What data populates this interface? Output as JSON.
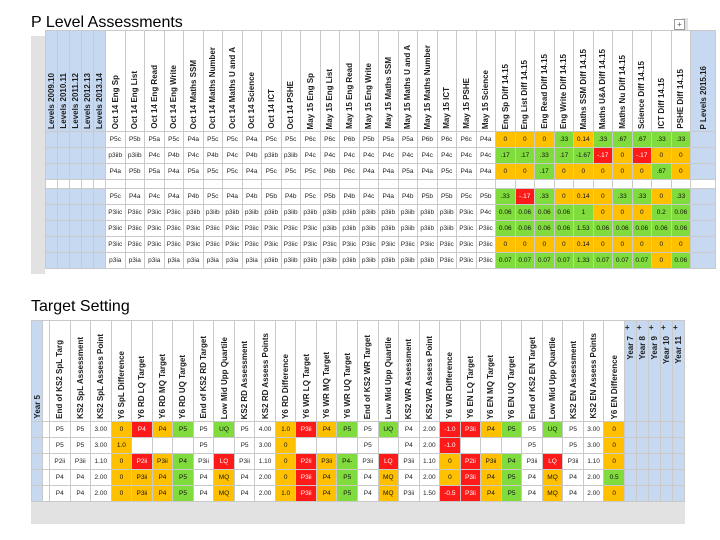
{
  "panels": {
    "p_level": {
      "title": "P Level Assessments"
    },
    "target": {
      "title": "Target Setting"
    }
  },
  "p_level_headers": {
    "left_years": [
      "Levels 2009.10",
      "Levels 2010.11",
      "Levels 2011.12",
      "Levels 2012.13",
      "Levels 2013.14"
    ],
    "columns": [
      "Oct 14 Eng Sp",
      "Oct 14 Eng List",
      "Oct 14 Eng Read",
      "Oct 14 Eng Write",
      "Oct 14 Maths SSM",
      "Oct 14 Maths Number",
      "Oct 14 Maths U and A",
      "Oct 14 Science",
      "Oct 14 ICT",
      "Oct 14 PSHE",
      "May 15 Eng Sp",
      "May 15 Eng List",
      "May 15 Eng Read",
      "May 15 Eng Write",
      "May 15 Maths SSM",
      "May 15 Maths U and A",
      "May 15 Maths Number",
      "May 15 ICT",
      "May 15 PSHE",
      "May 15 Science",
      "Eng Sp Diff 14.15",
      "Eng List Diff 14.15",
      "Eng Read Diff 14.15",
      "Eng Write Diff 14.15",
      "Maths SSM Diff 14.15",
      "Maths U&A Diff 14.15",
      "Maths Nu Diff 14.15",
      "Science Diff 14.15",
      "ICT Diff 14.15",
      "PSHE Diff 14.15"
    ],
    "right_year": "P Levels 2015.16"
  },
  "p_level_rows": [
    [
      [
        "P5c",
        "w"
      ],
      [
        "P5b",
        "w"
      ],
      [
        "P5a",
        "w"
      ],
      [
        "P5c",
        "w"
      ],
      [
        "P4a",
        "w"
      ],
      [
        "P5c",
        "w"
      ],
      [
        "P5c",
        "w"
      ],
      [
        "P4a",
        "w"
      ],
      [
        "P5c",
        "w"
      ],
      [
        "P5c",
        "w"
      ],
      [
        "P6c",
        "w"
      ],
      [
        "P6c",
        "w"
      ],
      [
        "P6b",
        "w"
      ],
      [
        "P5b",
        "w"
      ],
      [
        "P5a",
        "w"
      ],
      [
        "P5a",
        "w"
      ],
      [
        "P6b",
        "w"
      ],
      [
        "P6c",
        "w"
      ],
      [
        "P6c",
        "w"
      ],
      [
        "P4a",
        "w"
      ],
      [
        "0",
        "y"
      ],
      [
        "0",
        "y"
      ],
      [
        "0",
        "y"
      ],
      [
        ".33",
        "g"
      ],
      [
        "0.14",
        "y"
      ],
      [
        ".33",
        "g"
      ],
      [
        ".67",
        "g"
      ],
      [
        ".67",
        "g"
      ],
      [
        ".33",
        "g"
      ],
      [
        ".33",
        "g"
      ]
    ],
    [
      [
        "p3iib",
        "w"
      ],
      [
        "p3iib",
        "w"
      ],
      [
        "P4c",
        "w"
      ],
      [
        "P4b",
        "w"
      ],
      [
        "P4c",
        "w"
      ],
      [
        "P4b",
        "w"
      ],
      [
        "P4c",
        "w"
      ],
      [
        "P4b",
        "w"
      ],
      [
        "p3iib",
        "w"
      ],
      [
        "p3iib",
        "w"
      ],
      [
        "P4c",
        "w"
      ],
      [
        "P4c",
        "w"
      ],
      [
        "P4c",
        "w"
      ],
      [
        "P4c",
        "w"
      ],
      [
        "P4c",
        "w"
      ],
      [
        "P4c",
        "w"
      ],
      [
        "P4c",
        "w"
      ],
      [
        "P4c",
        "w"
      ],
      [
        "P4c",
        "w"
      ],
      [
        "P4c",
        "w"
      ],
      [
        ".17",
        "g"
      ],
      [
        ".17",
        "g"
      ],
      [
        ".33",
        "g"
      ],
      [
        ".17",
        "g"
      ],
      [
        "-1.67",
        "g"
      ],
      [
        "-.17",
        "r"
      ],
      [
        "0",
        "y"
      ],
      [
        "-.17",
        "r"
      ],
      [
        "0",
        "y"
      ],
      [
        "0",
        "y"
      ]
    ],
    [
      [
        "P4a",
        "w"
      ],
      [
        "P5b",
        "w"
      ],
      [
        "P5a",
        "w"
      ],
      [
        "P4a",
        "w"
      ],
      [
        "P5a",
        "w"
      ],
      [
        "P5c",
        "w"
      ],
      [
        "P5c",
        "w"
      ],
      [
        "P4a",
        "w"
      ],
      [
        "P5c",
        "w"
      ],
      [
        "P5c",
        "w"
      ],
      [
        "P5c",
        "w"
      ],
      [
        "P6b",
        "w"
      ],
      [
        "P6c",
        "w"
      ],
      [
        "P4a",
        "w"
      ],
      [
        "P4a",
        "w"
      ],
      [
        "P5a",
        "w"
      ],
      [
        "P4a",
        "w"
      ],
      [
        "P5c",
        "w"
      ],
      [
        "P4a",
        "w"
      ],
      [
        "P4a",
        "w"
      ],
      [
        "0",
        "y"
      ],
      [
        "0",
        "y"
      ],
      [
        ".17",
        "g"
      ],
      [
        "0",
        "y"
      ],
      [
        "0",
        "y"
      ],
      [
        "0",
        "y"
      ],
      [
        "0",
        "y"
      ],
      [
        "0",
        "y"
      ],
      [
        ".67",
        "g"
      ],
      [
        "0",
        "y"
      ]
    ],
    null,
    [
      [
        "P5c",
        "w"
      ],
      [
        "P4a",
        "w"
      ],
      [
        "P4c",
        "w"
      ],
      [
        "P4a",
        "w"
      ],
      [
        "P4b",
        "w"
      ],
      [
        "P5c",
        "w"
      ],
      [
        "P4a",
        "w"
      ],
      [
        "P4b",
        "w"
      ],
      [
        "P5b",
        "w"
      ],
      [
        "P4b",
        "w"
      ],
      [
        "P5c",
        "w"
      ],
      [
        "P5b",
        "w"
      ],
      [
        "P4b",
        "w"
      ],
      [
        "P4c",
        "w"
      ],
      [
        "P4a",
        "w"
      ],
      [
        "P4b",
        "w"
      ],
      [
        "P5b",
        "w"
      ],
      [
        "P5b",
        "w"
      ],
      [
        "P5c",
        "w"
      ],
      [
        "P5b",
        "w"
      ],
      [
        ".33",
        "g"
      ],
      [
        "-.17",
        "r"
      ],
      [
        ".33",
        "g"
      ],
      [
        "0",
        "y"
      ],
      [
        "0.14",
        "y"
      ],
      [
        "0",
        "y"
      ],
      [
        ".33",
        "g"
      ],
      [
        ".33",
        "g"
      ],
      [
        "0",
        "y"
      ],
      [
        ".33",
        "g"
      ]
    ],
    [
      [
        "P3iic",
        "w"
      ],
      [
        "P3iic",
        "w"
      ],
      [
        "P3iic",
        "w"
      ],
      [
        "P3iic",
        "w"
      ],
      [
        "p3iib",
        "w"
      ],
      [
        "p3iib",
        "w"
      ],
      [
        "p3iib",
        "w"
      ],
      [
        "p3iib",
        "w"
      ],
      [
        "p3iib",
        "w"
      ],
      [
        "p3iib",
        "w"
      ],
      [
        "p3iib",
        "w"
      ],
      [
        "p3iib",
        "w"
      ],
      [
        "p3iib",
        "w"
      ],
      [
        "p3iib",
        "w"
      ],
      [
        "p3iib",
        "w"
      ],
      [
        "p3iib",
        "w"
      ],
      [
        "p3iib",
        "w"
      ],
      [
        "p3iib",
        "w"
      ],
      [
        "P3iic",
        "w"
      ],
      [
        "P4c",
        "w"
      ],
      [
        "0.06",
        "g"
      ],
      [
        "0.06",
        "g"
      ],
      [
        "0.06",
        "g"
      ],
      [
        "0.06",
        "g"
      ],
      [
        "1",
        "g"
      ],
      [
        "0",
        "y"
      ],
      [
        "0",
        "y"
      ],
      [
        "0",
        "y"
      ],
      [
        "0.2",
        "g"
      ],
      [
        "0.06",
        "g"
      ]
    ],
    [
      [
        "P3iic",
        "w"
      ],
      [
        "P3iic",
        "w"
      ],
      [
        "P3iic",
        "w"
      ],
      [
        "P3iic",
        "w"
      ],
      [
        "P3iic",
        "w"
      ],
      [
        "P3iic",
        "w"
      ],
      [
        "P3iic",
        "w"
      ],
      [
        "P3iic",
        "w"
      ],
      [
        "P3iic",
        "w"
      ],
      [
        "P3iic",
        "w"
      ],
      [
        "P3iic",
        "w"
      ],
      [
        "p3iib",
        "w"
      ],
      [
        "p3iib",
        "w"
      ],
      [
        "p3iib",
        "w"
      ],
      [
        "p3iib",
        "w"
      ],
      [
        "p3iib",
        "w"
      ],
      [
        "p3iib",
        "w"
      ],
      [
        "p3iib",
        "w"
      ],
      [
        "P3iic",
        "w"
      ],
      [
        "P3iic",
        "w"
      ],
      [
        "0.06",
        "g"
      ],
      [
        "0.06",
        "g"
      ],
      [
        "0.06",
        "g"
      ],
      [
        "0.06",
        "g"
      ],
      [
        "1.53",
        "g"
      ],
      [
        "0.06",
        "g"
      ],
      [
        "0.06",
        "g"
      ],
      [
        "0.06",
        "g"
      ],
      [
        "0.06",
        "g"
      ],
      [
        "0.06",
        "g"
      ]
    ],
    [
      [
        "P3iic",
        "w"
      ],
      [
        "P3iic",
        "w"
      ],
      [
        "P3iic",
        "w"
      ],
      [
        "P3iic",
        "w"
      ],
      [
        "P3iic",
        "w"
      ],
      [
        "P3iic",
        "w"
      ],
      [
        "P3iic",
        "w"
      ],
      [
        "P3iic",
        "w"
      ],
      [
        "P3iic",
        "w"
      ],
      [
        "P3iic",
        "w"
      ],
      [
        "P3iic",
        "w"
      ],
      [
        "P3iic",
        "w"
      ],
      [
        "P3iic",
        "w"
      ],
      [
        "P3iic",
        "w"
      ],
      [
        "P3iic",
        "w"
      ],
      [
        "P3iic",
        "w"
      ],
      [
        "P3iic",
        "w"
      ],
      [
        "P3iic",
        "w"
      ],
      [
        "P3iic",
        "w"
      ],
      [
        "P3iic",
        "w"
      ],
      [
        "0",
        "y"
      ],
      [
        "0",
        "y"
      ],
      [
        "0",
        "y"
      ],
      [
        "0",
        "y"
      ],
      [
        "0.14",
        "y"
      ],
      [
        "0",
        "y"
      ],
      [
        "0",
        "y"
      ],
      [
        "0",
        "y"
      ],
      [
        "0",
        "y"
      ],
      [
        "0",
        "y"
      ]
    ],
    [
      [
        "p3ia",
        "w"
      ],
      [
        "p3ia",
        "w"
      ],
      [
        "p3ia",
        "w"
      ],
      [
        "p3ia",
        "w"
      ],
      [
        "p3ia",
        "w"
      ],
      [
        "p3ia",
        "w"
      ],
      [
        "p3ia",
        "w"
      ],
      [
        "p3ia",
        "w"
      ],
      [
        "p3iib",
        "w"
      ],
      [
        "p3iib",
        "w"
      ],
      [
        "p3iib",
        "w"
      ],
      [
        "p3iib",
        "w"
      ],
      [
        "p3iib",
        "w"
      ],
      [
        "p3iib",
        "w"
      ],
      [
        "p3iib",
        "w"
      ],
      [
        "p3iib",
        "w"
      ],
      [
        "p3iib",
        "w"
      ],
      [
        "P3iic",
        "w"
      ],
      [
        "P3iic",
        "w"
      ],
      [
        "P3iic",
        "w"
      ],
      [
        "0.07",
        "g"
      ],
      [
        "0.07",
        "g"
      ],
      [
        "0.07",
        "g"
      ],
      [
        "0.07",
        "g"
      ],
      [
        "1.33",
        "g"
      ],
      [
        "0.07",
        "g"
      ],
      [
        "0.07",
        "g"
      ],
      [
        "0.07",
        "g"
      ],
      [
        "0",
        "y"
      ],
      [
        "0.06",
        "g"
      ]
    ]
  ],
  "target_headers": {
    "left_year": "Year 5",
    "columns": [
      "End of KS2 SpL Targ",
      "KS2 SpL Assessment",
      "KS2 SpL Assess Point",
      "Y6 SpL Difference",
      "Y6 RD LQ Target",
      "Y6 RD MQ Target",
      "Y6 RD UQ Target",
      "End of KS2 RD Target",
      "Low Mid Upp Quartile",
      "KS2 RD Assessment",
      "KS2 RD Assess Points",
      "Y6 RD Difference",
      "Y6 WR LQ Target",
      "Y6 WR MQ Target",
      "Y6 WR UQ Target",
      "End of KS2 WR Target",
      "Low Mid Upp Quartile",
      "KS2 WR Assessment",
      "KS2 WR Assess Point",
      "Y6 WR Difference",
      "Y6 EN LQ Target",
      "Y6 EN MQ Target",
      "Y6 EN UQ Target",
      "End of KS2 EN Target",
      "Low Mid Upp Quartile",
      "KS2 EN Assessment",
      "KS2 EN Assess Points",
      "Y6 EN Difference"
    ],
    "right_years": [
      "Year 7",
      "Year 8",
      "Year 9",
      "Year 10",
      "Year 11"
    ]
  },
  "target_rows": [
    [
      [
        "P5",
        "w"
      ],
      [
        "P5",
        "w"
      ],
      [
        "3.00",
        "w"
      ],
      [
        "0",
        "y"
      ],
      [
        "P4",
        "r"
      ],
      [
        "P4",
        "y"
      ],
      [
        "P5",
        "g"
      ],
      [
        "P5",
        "w"
      ],
      [
        "UQ",
        "g"
      ],
      [
        "P5",
        "w"
      ],
      [
        "4.00",
        "w"
      ],
      [
        "1.0",
        "y"
      ],
      [
        "P3ii",
        "r"
      ],
      [
        "P4",
        "y"
      ],
      [
        "P5",
        "g"
      ],
      [
        "P5",
        "w"
      ],
      [
        "UQ",
        "g"
      ],
      [
        "P4",
        "w"
      ],
      [
        "2.00",
        "w"
      ],
      [
        "-1.0",
        "r"
      ],
      [
        "P3ii",
        "r"
      ],
      [
        "P4",
        "y"
      ],
      [
        "P5",
        "g"
      ],
      [
        "P5",
        "w"
      ],
      [
        "UQ",
        "g"
      ],
      [
        "P5",
        "w"
      ],
      [
        "3.00",
        "w"
      ],
      [
        "0",
        "y"
      ]
    ],
    [
      [
        "P5",
        "w"
      ],
      [
        "P5",
        "w"
      ],
      [
        "3.00",
        "w"
      ],
      [
        "1.0",
        "y"
      ],
      [
        "",
        "w"
      ],
      [
        "",
        "w"
      ],
      [
        "",
        "w"
      ],
      [
        "P5",
        "w"
      ],
      [
        "",
        "w"
      ],
      [
        "P5",
        "w"
      ],
      [
        "3.00",
        "w"
      ],
      [
        "0",
        "y"
      ],
      [
        "",
        "w"
      ],
      [
        "",
        "w"
      ],
      [
        "",
        "w"
      ],
      [
        "P5",
        "w"
      ],
      [
        "",
        "w"
      ],
      [
        "P4",
        "w"
      ],
      [
        "2.00",
        "w"
      ],
      [
        "-1.0",
        "r"
      ],
      [
        "",
        "w"
      ],
      [
        "",
        "w"
      ],
      [
        "",
        "w"
      ],
      [
        "P5",
        "w"
      ],
      [
        "",
        "w"
      ],
      [
        "P5",
        "w"
      ],
      [
        "3.00",
        "w"
      ],
      [
        "0",
        "y"
      ]
    ],
    [
      [
        "P2ii",
        "w"
      ],
      [
        "P3ii",
        "w"
      ],
      [
        "1.10",
        "w"
      ],
      [
        "0",
        "y"
      ],
      [
        "P2ii",
        "r"
      ],
      [
        "P3ii",
        "y"
      ],
      [
        "P4",
        "g"
      ],
      [
        "P3ii",
        "w"
      ],
      [
        "LQ",
        "r"
      ],
      [
        "P3ii",
        "w"
      ],
      [
        "1.10",
        "w"
      ],
      [
        "0",
        "y"
      ],
      [
        "P2ii",
        "r"
      ],
      [
        "P3ii",
        "y"
      ],
      [
        "P4-",
        "g"
      ],
      [
        "P3ii",
        "w"
      ],
      [
        "LQ",
        "r"
      ],
      [
        "P3ii",
        "w"
      ],
      [
        "1.10",
        "w"
      ],
      [
        "0",
        "y"
      ],
      [
        "P2ii",
        "r"
      ],
      [
        "P3ii",
        "y"
      ],
      [
        "P4",
        "g"
      ],
      [
        "P3ii",
        "w"
      ],
      [
        "LQ",
        "r"
      ],
      [
        "P3ii",
        "w"
      ],
      [
        "1.10",
        "w"
      ],
      [
        "0",
        "y"
      ]
    ],
    [
      [
        "P4",
        "w"
      ],
      [
        "P4",
        "w"
      ],
      [
        "2.00",
        "w"
      ],
      [
        "0",
        "y"
      ],
      [
        "P3ii",
        "y"
      ],
      [
        "P4",
        "y"
      ],
      [
        "P5",
        "g"
      ],
      [
        "P4",
        "w"
      ],
      [
        "MQ",
        "y"
      ],
      [
        "P4",
        "w"
      ],
      [
        "2.00",
        "w"
      ],
      [
        "0",
        "y"
      ],
      [
        "P3ii",
        "r"
      ],
      [
        "P4",
        "y"
      ],
      [
        "P5",
        "g"
      ],
      [
        "P4",
        "w"
      ],
      [
        "MQ",
        "y"
      ],
      [
        "P4",
        "w"
      ],
      [
        "2.00",
        "w"
      ],
      [
        "0",
        "y"
      ],
      [
        "P3ii",
        "r"
      ],
      [
        "P4",
        "y"
      ],
      [
        "P5",
        "g"
      ],
      [
        "P4",
        "w"
      ],
      [
        "MQ",
        "y"
      ],
      [
        "P4",
        "w"
      ],
      [
        "2.00",
        "w"
      ],
      [
        "0.5",
        "g"
      ]
    ],
    [
      [
        "P4",
        "w"
      ],
      [
        "P4",
        "w"
      ],
      [
        "2.00",
        "w"
      ],
      [
        "0",
        "y"
      ],
      [
        "P3ii",
        "y"
      ],
      [
        "P4",
        "y"
      ],
      [
        "P5",
        "g"
      ],
      [
        "P4",
        "w"
      ],
      [
        "MQ",
        "y"
      ],
      [
        "P4",
        "w"
      ],
      [
        "2.00",
        "w"
      ],
      [
        "1.0",
        "y"
      ],
      [
        "P3ii",
        "r"
      ],
      [
        "P4",
        "y"
      ],
      [
        "P5",
        "g"
      ],
      [
        "P4",
        "w"
      ],
      [
        "MQ",
        "y"
      ],
      [
        "P3ii",
        "w"
      ],
      [
        "1.50",
        "w"
      ],
      [
        "-0.5",
        "r"
      ],
      [
        "P3ii",
        "r"
      ],
      [
        "P4",
        "y"
      ],
      [
        "P5",
        "g"
      ],
      [
        "P4",
        "w"
      ],
      [
        "MQ",
        "y"
      ],
      [
        "P4",
        "w"
      ],
      [
        "2.00",
        "w"
      ],
      [
        "0",
        "y"
      ]
    ]
  ]
}
